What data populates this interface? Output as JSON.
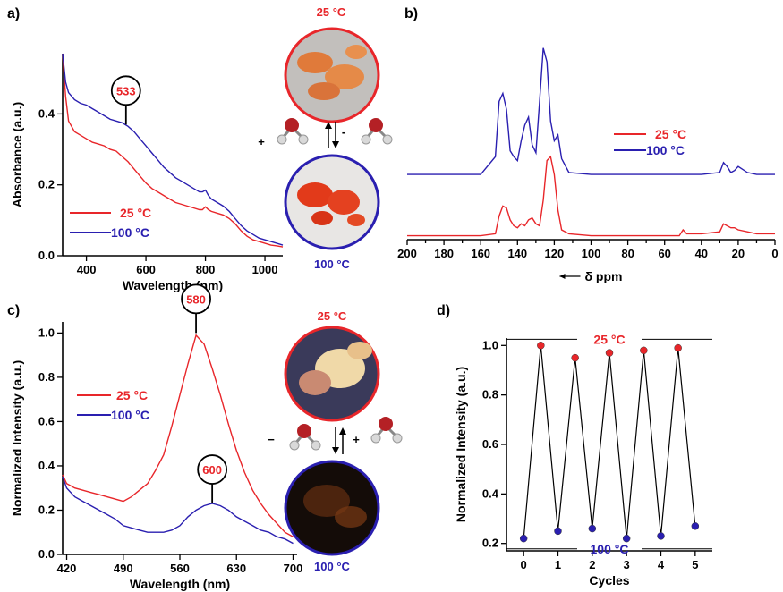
{
  "colors": {
    "red": "#e8262a",
    "blue": "#2a1fb0",
    "black": "#000000"
  },
  "chart_data": [
    {
      "panel": "a)",
      "type": "line",
      "xlabel": "Wavelength (nm)",
      "ylabel": "Absorbance (a.u.)",
      "xlim": [
        320,
        1060
      ],
      "ylim": [
        0.0,
        0.57
      ],
      "xticks": [
        400,
        600,
        800,
        1000
      ],
      "yticks": [
        0.0,
        0.2,
        0.4
      ],
      "legend_position": "bottom-left",
      "annotation": {
        "label": "533",
        "x": 533,
        "y": 0.37
      },
      "series": [
        {
          "name": "25 °C",
          "color": "red",
          "x": [
            320,
            330,
            340,
            360,
            380,
            400,
            420,
            440,
            460,
            480,
            500,
            520,
            540,
            560,
            580,
            600,
            620,
            640,
            660,
            680,
            700,
            720,
            740,
            760,
            780,
            790,
            800,
            810,
            820,
            840,
            860,
            880,
            900,
            920,
            940,
            960,
            980,
            1000,
            1020,
            1040,
            1060
          ],
          "y": [
            0.57,
            0.45,
            0.38,
            0.35,
            0.34,
            0.33,
            0.32,
            0.315,
            0.31,
            0.3,
            0.295,
            0.28,
            0.265,
            0.245,
            0.225,
            0.205,
            0.19,
            0.18,
            0.17,
            0.16,
            0.15,
            0.145,
            0.14,
            0.135,
            0.13,
            0.13,
            0.138,
            0.13,
            0.125,
            0.12,
            0.115,
            0.105,
            0.09,
            0.07,
            0.055,
            0.045,
            0.04,
            0.035,
            0.03,
            0.028,
            0.025
          ]
        },
        {
          "name": "100 °C",
          "color": "blue",
          "x": [
            320,
            330,
            340,
            360,
            380,
            400,
            420,
            440,
            460,
            480,
            500,
            520,
            540,
            560,
            580,
            600,
            620,
            640,
            660,
            680,
            700,
            720,
            740,
            760,
            780,
            790,
            800,
            810,
            820,
            840,
            860,
            880,
            900,
            920,
            940,
            960,
            980,
            1000,
            1020,
            1040,
            1060
          ],
          "y": [
            0.57,
            0.49,
            0.46,
            0.44,
            0.43,
            0.425,
            0.415,
            0.405,
            0.395,
            0.385,
            0.38,
            0.375,
            0.365,
            0.35,
            0.33,
            0.31,
            0.29,
            0.27,
            0.25,
            0.235,
            0.22,
            0.21,
            0.2,
            0.19,
            0.18,
            0.18,
            0.185,
            0.17,
            0.16,
            0.15,
            0.14,
            0.125,
            0.105,
            0.085,
            0.07,
            0.06,
            0.05,
            0.045,
            0.04,
            0.035,
            0.03
          ]
        }
      ]
    },
    {
      "panel": "b)",
      "type": "line",
      "xlabel": "δ ppm",
      "xlim": [
        200,
        0
      ],
      "xticks": [
        200,
        180,
        160,
        140,
        120,
        100,
        80,
        60,
        40,
        20,
        0
      ],
      "legend_position": "top-right",
      "series": [
        {
          "name": "25 °C",
          "color": "red",
          "x": [
            200,
            180,
            160,
            152,
            150,
            148,
            146,
            144,
            142,
            140,
            138,
            136,
            134,
            132,
            130,
            128,
            126,
            124,
            122,
            120,
            118,
            116,
            112,
            100,
            80,
            60,
            52,
            50,
            48,
            40,
            30,
            28,
            26,
            24,
            22,
            20,
            15,
            10,
            5,
            0
          ],
          "y": [
            0.02,
            0.02,
            0.02,
            0.03,
            0.12,
            0.17,
            0.16,
            0.1,
            0.07,
            0.06,
            0.08,
            0.07,
            0.1,
            0.11,
            0.08,
            0.07,
            0.2,
            0.4,
            0.42,
            0.33,
            0.15,
            0.05,
            0.03,
            0.02,
            0.02,
            0.02,
            0.02,
            0.05,
            0.03,
            0.03,
            0.04,
            0.08,
            0.07,
            0.06,
            0.06,
            0.05,
            0.04,
            0.03,
            0.03,
            0.03
          ]
        },
        {
          "name": "100 °C",
          "color": "blue",
          "x": [
            200,
            180,
            160,
            152,
            150,
            148,
            146,
            144,
            142,
            140,
            138,
            136,
            134,
            132,
            130,
            128,
            126,
            124,
            122,
            120,
            118,
            116,
            112,
            100,
            80,
            60,
            40,
            30,
            28,
            26,
            24,
            22,
            20,
            15,
            10,
            5,
            0
          ],
          "y": [
            0.33,
            0.33,
            0.33,
            0.42,
            0.7,
            0.74,
            0.66,
            0.45,
            0.42,
            0.4,
            0.5,
            0.58,
            0.62,
            0.48,
            0.44,
            0.7,
            0.97,
            0.9,
            0.6,
            0.5,
            0.53,
            0.41,
            0.34,
            0.33,
            0.33,
            0.33,
            0.33,
            0.34,
            0.39,
            0.37,
            0.34,
            0.35,
            0.37,
            0.34,
            0.33,
            0.33,
            0.33
          ]
        }
      ]
    },
    {
      "panel": "c)",
      "type": "line",
      "xlabel": "Wavelength (nm)",
      "ylabel": "Normalized Intensity (a.u.)",
      "xlim": [
        415,
        705
      ],
      "ylim": [
        0.0,
        1.05
      ],
      "xticks": [
        420,
        490,
        560,
        630,
        700
      ],
      "yticks": [
        0.0,
        0.2,
        0.4,
        0.6,
        0.8,
        1.0
      ],
      "legend_position": "left",
      "annotations": [
        {
          "label": "580",
          "x": 580,
          "y": 1.0
        },
        {
          "label": "600",
          "x": 600,
          "y": 0.23
        }
      ],
      "series": [
        {
          "name": "25 °C",
          "color": "red",
          "x": [
            415,
            420,
            430,
            440,
            450,
            460,
            470,
            480,
            490,
            500,
            510,
            520,
            530,
            540,
            550,
            560,
            570,
            580,
            590,
            600,
            610,
            620,
            630,
            640,
            650,
            660,
            670,
            680,
            690,
            700
          ],
          "y": [
            0.36,
            0.32,
            0.3,
            0.29,
            0.28,
            0.27,
            0.26,
            0.25,
            0.24,
            0.26,
            0.29,
            0.32,
            0.38,
            0.45,
            0.58,
            0.72,
            0.86,
            0.99,
            0.95,
            0.84,
            0.72,
            0.59,
            0.47,
            0.37,
            0.29,
            0.23,
            0.18,
            0.14,
            0.1,
            0.08
          ]
        },
        {
          "name": "100 °C",
          "color": "blue",
          "x": [
            415,
            420,
            430,
            440,
            450,
            460,
            470,
            480,
            490,
            500,
            510,
            520,
            530,
            540,
            550,
            560,
            570,
            580,
            590,
            600,
            610,
            620,
            630,
            640,
            650,
            660,
            670,
            680,
            690,
            700
          ],
          "y": [
            0.35,
            0.3,
            0.26,
            0.24,
            0.22,
            0.2,
            0.18,
            0.16,
            0.13,
            0.12,
            0.11,
            0.1,
            0.1,
            0.1,
            0.11,
            0.13,
            0.17,
            0.2,
            0.22,
            0.23,
            0.22,
            0.2,
            0.17,
            0.15,
            0.13,
            0.11,
            0.1,
            0.08,
            0.07,
            0.05
          ]
        }
      ]
    },
    {
      "panel": "d)",
      "type": "scatter",
      "xlabel": "Cycles",
      "ylabel": "Normalized Intensity (a.u.)",
      "xlim": [
        -0.5,
        5.5
      ],
      "ylim": [
        0.17,
        1.03
      ],
      "xticks": [
        0,
        1,
        2,
        3,
        4,
        5
      ],
      "yticks": [
        0.2,
        0.4,
        0.6,
        0.8,
        1.0
      ],
      "line_labels": [
        {
          "label": "25 °C",
          "y": 1.025,
          "color": "red"
        },
        {
          "label": "100 °C",
          "y": 0.178,
          "color": "blue"
        }
      ],
      "series": [
        {
          "name": "cycle",
          "color": "black",
          "x": [
            0,
            0.5,
            1,
            1.5,
            2,
            2.5,
            3,
            3.5,
            4,
            4.5,
            5
          ],
          "y": [
            0.22,
            1.0,
            0.25,
            0.95,
            0.26,
            0.97,
            0.22,
            0.98,
            0.23,
            0.99,
            0.27
          ],
          "point_colors": [
            "blue",
            "red",
            "blue",
            "red",
            "blue",
            "red",
            "blue",
            "red",
            "blue",
            "red",
            "blue"
          ]
        }
      ]
    }
  ],
  "photos": {
    "top_label": "25 °C",
    "bottom_label": "100 °C",
    "top_sign": "+",
    "bottom_sign": "-",
    "c_top_label": "25 °C",
    "c_bottom_label": "100 °C",
    "c_top_sign": "−",
    "c_bottom_sign": "+"
  }
}
